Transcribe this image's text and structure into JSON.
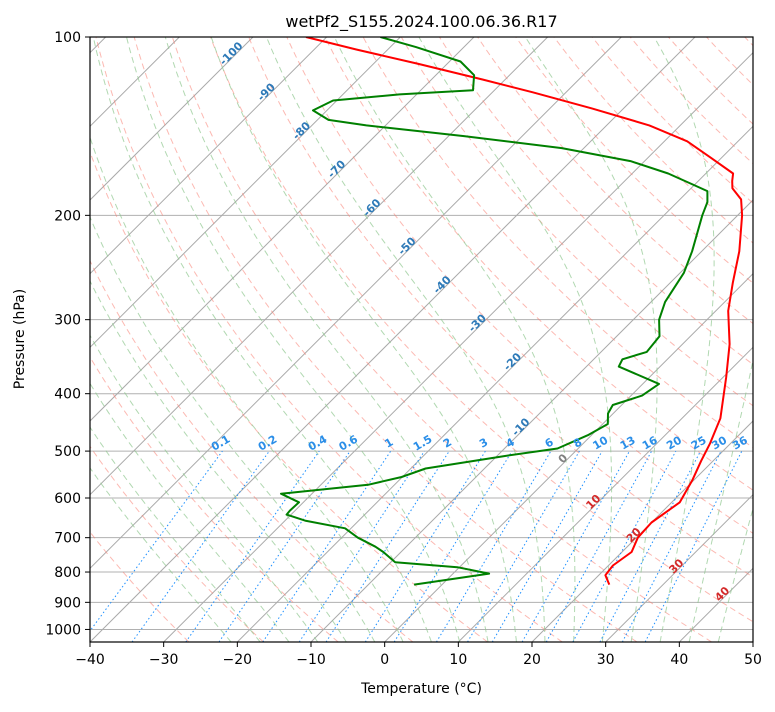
{
  "chart_data": {
    "type": "line",
    "title": "wetPf2_S155.2024.100.06.36.R17",
    "xlabel": "Temperature (°C)",
    "ylabel": "Pressure (hPa)",
    "xlim": [
      -40,
      50
    ],
    "ylim_hpa": [
      1050,
      100
    ],
    "y_scale": "log",
    "skew": "skew-T log-p",
    "grid": true,
    "x_ticks": [
      -40,
      -30,
      -20,
      -10,
      0,
      10,
      20,
      30,
      40,
      50
    ],
    "y_ticks": [
      100,
      200,
      300,
      400,
      500,
      600,
      700,
      800,
      900,
      1000
    ],
    "series": [
      {
        "name": "",
        "color": "#ff0000",
        "points": [
          {
            "t": 22.7,
            "p": 840
          },
          {
            "t": 20.9,
            "p": 810
          },
          {
            "t": 20.6,
            "p": 780
          },
          {
            "t": 21.3,
            "p": 740
          },
          {
            "t": 20.2,
            "p": 700
          },
          {
            "t": 20.0,
            "p": 660
          },
          {
            "t": 21.1,
            "p": 610
          },
          {
            "t": 19.8,
            "p": 560
          },
          {
            "t": 18.4,
            "p": 520
          },
          {
            "t": 17.2,
            "p": 485
          },
          {
            "t": 15.2,
            "p": 440
          },
          {
            "t": 10.4,
            "p": 375
          },
          {
            "t": 6.4,
            "p": 330
          },
          {
            "t": 1.7,
            "p": 290
          },
          {
            "t": -1.5,
            "p": 260
          },
          {
            "t": -4.9,
            "p": 230
          },
          {
            "t": -9.4,
            "p": 200
          },
          {
            "t": -11.7,
            "p": 188
          },
          {
            "t": -14.4,
            "p": 180
          },
          {
            "t": -15.4,
            "p": 175
          },
          {
            "t": -16.3,
            "p": 170
          },
          {
            "t": -21.4,
            "p": 160
          },
          {
            "t": -26.9,
            "p": 150
          },
          {
            "t": -34.2,
            "p": 141
          },
          {
            "t": -44.3,
            "p": 132
          },
          {
            "t": -54.5,
            "p": 124
          },
          {
            "t": -63.0,
            "p": 118
          },
          {
            "t": -73.9,
            "p": 111
          },
          {
            "t": -84.2,
            "p": 105
          },
          {
            "t": -92.8,
            "p": 100
          }
        ]
      },
      {
        "name": "",
        "color": "#008000",
        "points": [
          {
            "t": -3.8,
            "p": 840
          },
          {
            "t": 4.9,
            "p": 805
          },
          {
            "t": -0.3,
            "p": 785
          },
          {
            "t": -9.4,
            "p": 770
          },
          {
            "t": -12.4,
            "p": 740
          },
          {
            "t": -14.2,
            "p": 725
          },
          {
            "t": -17.8,
            "p": 700
          },
          {
            "t": -20.8,
            "p": 675
          },
          {
            "t": -27.3,
            "p": 655
          },
          {
            "t": -30.6,
            "p": 640
          },
          {
            "t": -30.7,
            "p": 630
          },
          {
            "t": -30.6,
            "p": 610
          },
          {
            "t": -34.2,
            "p": 590
          },
          {
            "t": -23.6,
            "p": 570
          },
          {
            "t": -20.1,
            "p": 553
          },
          {
            "t": -18.0,
            "p": 535
          },
          {
            "t": -9.1,
            "p": 510
          },
          {
            "t": -2.8,
            "p": 495
          },
          {
            "t": -0.5,
            "p": 470
          },
          {
            "t": 0.7,
            "p": 450
          },
          {
            "t": -0.7,
            "p": 432
          },
          {
            "t": -1.2,
            "p": 418
          },
          {
            "t": 1.5,
            "p": 403
          },
          {
            "t": 2.2,
            "p": 385
          },
          {
            "t": -5.6,
            "p": 360
          },
          {
            "t": -6.1,
            "p": 350
          },
          {
            "t": -3.8,
            "p": 340
          },
          {
            "t": -4.2,
            "p": 320
          },
          {
            "t": -6.5,
            "p": 300
          },
          {
            "t": -8.1,
            "p": 280
          },
          {
            "t": -9.5,
            "p": 250
          },
          {
            "t": -11.3,
            "p": 230
          },
          {
            "t": -14.8,
            "p": 200
          },
          {
            "t": -15.9,
            "p": 190
          },
          {
            "t": -17.4,
            "p": 182
          },
          {
            "t": -19.9,
            "p": 178
          },
          {
            "t": -25.1,
            "p": 170
          },
          {
            "t": -31.9,
            "p": 162
          },
          {
            "t": -43.0,
            "p": 154
          },
          {
            "t": -57.9,
            "p": 147
          },
          {
            "t": -72.6,
            "p": 141
          },
          {
            "t": -78.5,
            "p": 138
          },
          {
            "t": -81.9,
            "p": 133
          },
          {
            "t": -80.5,
            "p": 128
          },
          {
            "t": -72.3,
            "p": 125
          },
          {
            "t": -62.9,
            "p": 123
          },
          {
            "t": -64.8,
            "p": 116
          },
          {
            "t": -68.5,
            "p": 110
          },
          {
            "t": -76.5,
            "p": 104
          },
          {
            "t": -82.7,
            "p": 100
          }
        ]
      }
    ],
    "reference_lines": {
      "isotherm_step_c": 10,
      "dry_adiabat_color": "#fa8072",
      "moist_adiabat_color": "#90c890",
      "mixing_ratio_color": "#1e90ff",
      "isotherm_color": "#808080"
    },
    "isotherm_labels": [
      "-100",
      "-90",
      "-80",
      "-70",
      "-60",
      "-50",
      "-40",
      "-30",
      "-20",
      "-10",
      "0"
    ],
    "isotherm_label_values": [
      -100,
      -90,
      -80,
      -70,
      -60,
      -50,
      -40,
      -30,
      -20,
      -10,
      0
    ],
    "mixing_ratio_labels": [
      "0.1",
      "0.2",
      "0.4",
      "0.6",
      "1",
      "1.5",
      "2",
      "3",
      "4",
      "6",
      "8",
      "10",
      "13",
      "16",
      "20",
      "25",
      "30",
      "36"
    ],
    "mixing_ratio_values": [
      0.1,
      0.2,
      0.4,
      0.6,
      1,
      1.5,
      2,
      3,
      4,
      6,
      8,
      10,
      13,
      16,
      20,
      25,
      30,
      36
    ],
    "warm_isotherm_labels": [
      "10",
      "20",
      "30",
      "40"
    ],
    "warm_isotherm_values": [
      10,
      20,
      30,
      40
    ]
  }
}
